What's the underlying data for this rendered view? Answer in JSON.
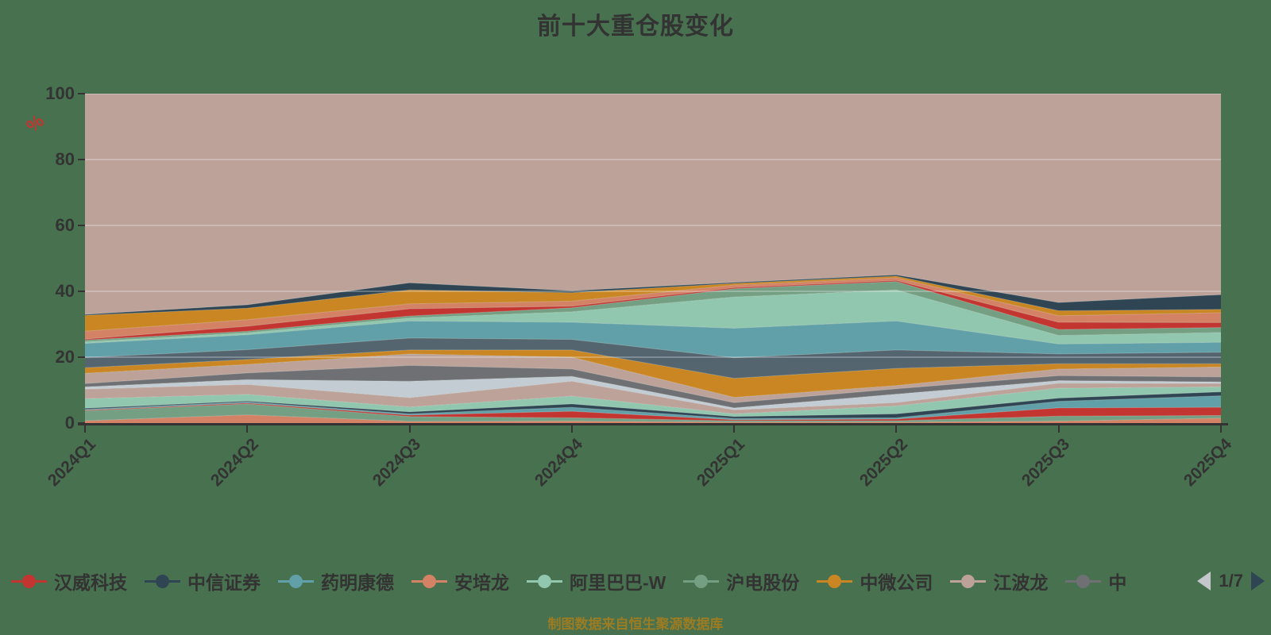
{
  "title": "前十大重仓股变化",
  "caption": "制图数据来自恒生聚源数据库",
  "colors": {
    "background": "#48714F",
    "text": "#333333",
    "caption_gold": "#9C7C22",
    "unit_red": "#C23531",
    "axis": "#333333",
    "gridline": "rgba(255,255,255,0.35)",
    "pager_prev": "#C3C7CB",
    "pager_next": "#2F4554"
  },
  "y_axis": {
    "unit": "%",
    "ticks": [
      0,
      20,
      40,
      60,
      80,
      100
    ]
  },
  "chart_data": {
    "type": "area",
    "stacked": true,
    "title": "前十大重仓股变化",
    "xlabel": "",
    "ylabel": "%",
    "ylim": [
      0,
      100
    ],
    "grid": true,
    "legend_position": "bottom",
    "x": [
      "2024Q1",
      "2024Q2",
      "2024Q3",
      "2024Q4",
      "2025Q1",
      "2025Q2",
      "2025Q3",
      "2025Q4"
    ],
    "series": [
      {
        "id": "band-salmon-1",
        "color": "#D48265",
        "values": [
          0.7,
          2.5,
          0.5,
          0.6,
          0.3,
          0.3,
          0.6,
          1.5
        ]
      },
      {
        "id": "band-sage-1",
        "color": "#749F83",
        "values": [
          3.0,
          3.3,
          1.5,
          1.0,
          0.4,
          0.4,
          1.5,
          0.8
        ]
      },
      {
        "id": "band-red-1",
        "color": "#C23531",
        "values": [
          0.2,
          0.3,
          0.4,
          2.0,
          0.3,
          0.5,
          2.5,
          2.5
        ]
      },
      {
        "id": "band-teal-1",
        "color": "#61A0A8",
        "values": [
          0.3,
          0.3,
          0.4,
          1.2,
          0.4,
          0.4,
          2.0,
          3.5
        ]
      },
      {
        "id": "band-navy-1",
        "color": "#2F4554",
        "values": [
          0.3,
          0.3,
          0.6,
          1.0,
          0.6,
          1.2,
          1.0,
          1.2
        ]
      },
      {
        "id": "band-mint-1",
        "color": "#91C7AE",
        "values": [
          2.9,
          2.0,
          1.5,
          2.4,
          0.8,
          2.4,
          3.0,
          1.5
        ]
      },
      {
        "id": "band-rose-1",
        "color": "#BDA29A",
        "values": [
          2.9,
          3.0,
          2.8,
          4.5,
          1.2,
          1.0,
          1.5,
          1.0
        ]
      },
      {
        "id": "band-silver-1",
        "color": "#C4CCD3",
        "values": [
          0.7,
          1.5,
          5.0,
          1.5,
          0.6,
          2.6,
          0.8,
          0.5
        ]
      },
      {
        "id": "band-gray-1",
        "color": "#6E7074",
        "values": [
          1.0,
          2.0,
          4.8,
          2.2,
          1.6,
          1.6,
          1.5,
          1.5
        ]
      },
      {
        "id": "band-rose-2",
        "color": "#BDA29A",
        "values": [
          3.1,
          2.6,
          3.5,
          3.6,
          1.6,
          1.0,
          2.0,
          3.0
        ]
      },
      {
        "id": "band-gold-1",
        "color": "#CA8622",
        "values": [
          1.7,
          1.5,
          1.2,
          2.2,
          5.8,
          5.2,
          1.6,
          1.0
        ]
      },
      {
        "id": "band-slate-1",
        "color": "#546570",
        "values": [
          3.1,
          3.0,
          3.6,
          3.2,
          6.2,
          5.6,
          3.0,
          3.5
        ]
      },
      {
        "id": "band-teal-2",
        "color": "#61A0A8",
        "values": [
          4.3,
          4.5,
          5.2,
          5.2,
          9.0,
          8.8,
          3.0,
          3.0
        ]
      },
      {
        "id": "band-mint-2",
        "color": "#91C7AE",
        "values": [
          0.5,
          0.6,
          0.9,
          3.2,
          9.5,
          9.4,
          2.6,
          3.0
        ]
      },
      {
        "id": "band-sage-2",
        "color": "#749F83",
        "values": [
          0.5,
          0.5,
          0.6,
          1.2,
          2.5,
          2.6,
          1.8,
          1.5
        ]
      },
      {
        "id": "band-red-2",
        "color": "#C23531",
        "values": [
          0.3,
          1.5,
          2.2,
          0.5,
          0.3,
          0.3,
          2.2,
          1.5
        ]
      },
      {
        "id": "band-salmon-2",
        "color": "#D48265",
        "values": [
          2.4,
          2.0,
          1.5,
          1.5,
          0.8,
          0.8,
          2.0,
          3.0
        ]
      },
      {
        "id": "band-gold-2",
        "color": "#CA8622",
        "values": [
          4.8,
          3.5,
          4.2,
          2.6,
          0.5,
          0.5,
          1.5,
          1.0
        ]
      },
      {
        "id": "band-navy-2",
        "color": "#2F4554",
        "values": [
          0.3,
          1.0,
          2.2,
          0.6,
          0.3,
          0.4,
          2.5,
          4.5
        ]
      }
    ],
    "rest_band": {
      "id": "band-rose-top-rest",
      "color": "#BDA29A",
      "fills_to": 100
    }
  },
  "legend": {
    "items": [
      {
        "label": "汉威科技",
        "color": "#C23531"
      },
      {
        "label": "中信证券",
        "color": "#2F4554"
      },
      {
        "label": "药明康德",
        "color": "#61A0A8"
      },
      {
        "label": "安培龙",
        "color": "#D48265"
      },
      {
        "label": "阿里巴巴-W",
        "color": "#91C7AE"
      },
      {
        "label": "沪电股份",
        "color": "#749F83"
      },
      {
        "label": "中微公司",
        "color": "#CA8622"
      },
      {
        "label": "江波龙",
        "color": "#BDA29A"
      },
      {
        "label": "中",
        "color": "#6E7074"
      }
    ],
    "page": "1/7"
  }
}
